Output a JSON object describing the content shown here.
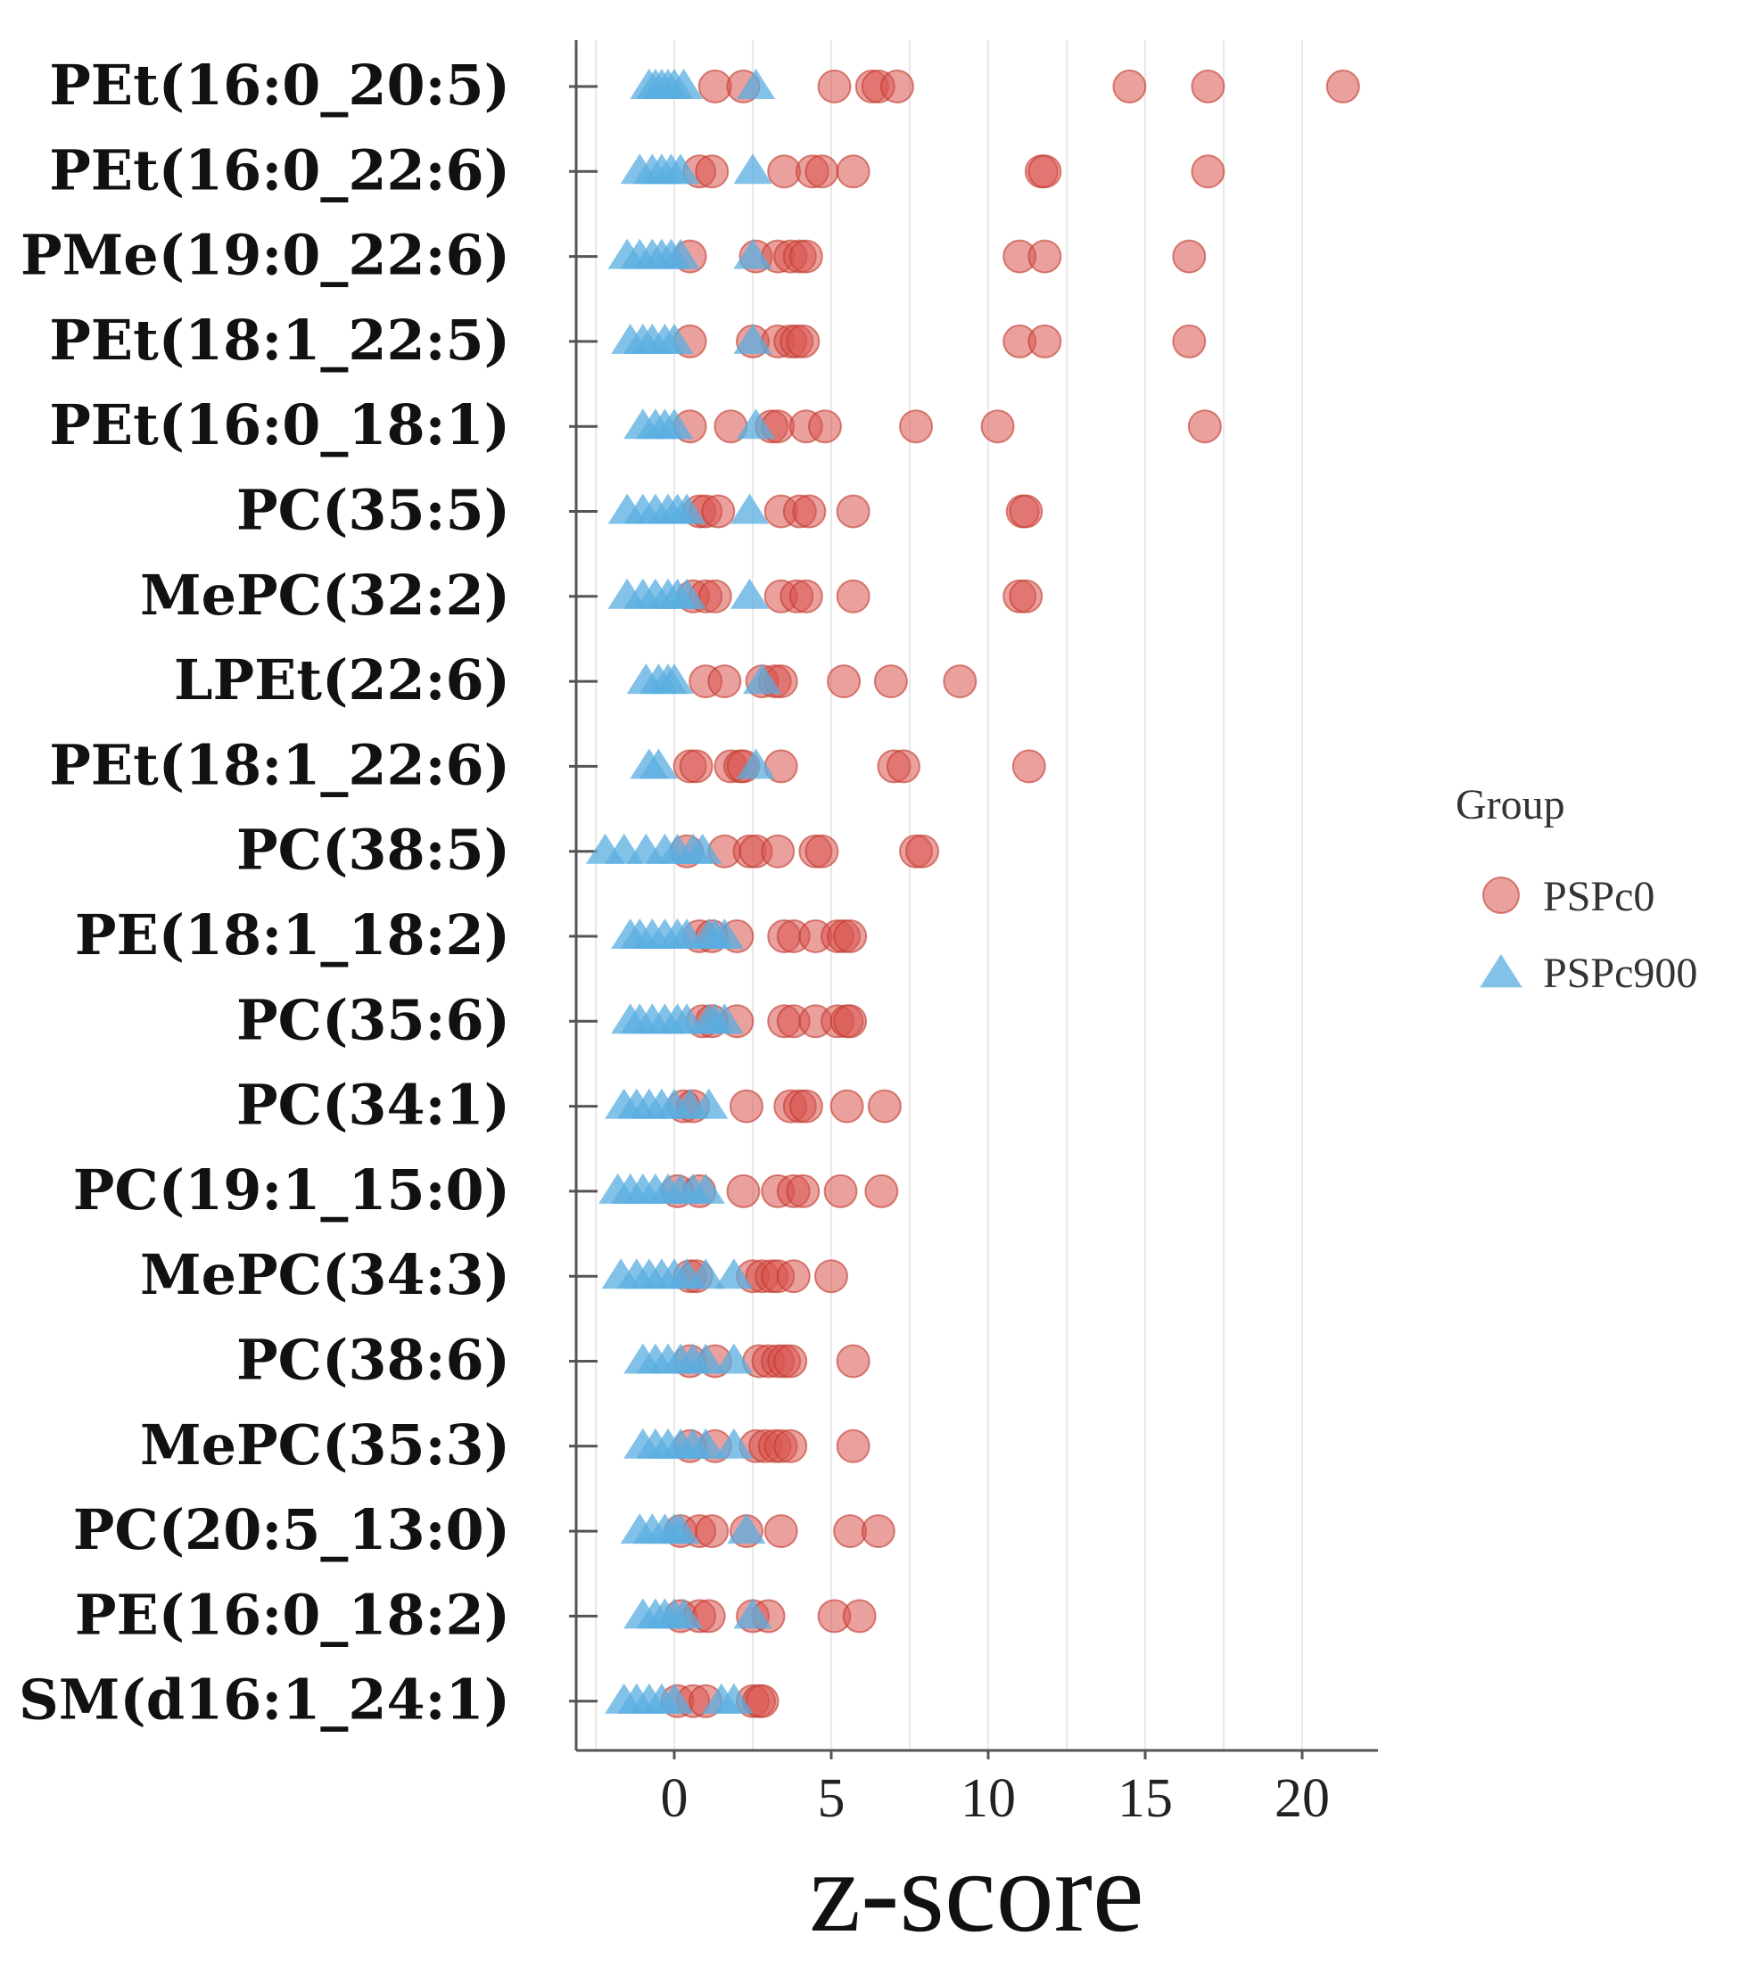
{
  "chart_data": {
    "type": "scatter",
    "xlabel": "z-score",
    "ylabel": "",
    "xlim": [
      -3.2,
      22.5
    ],
    "xticks": [
      0,
      5,
      10,
      15,
      20
    ],
    "xtick_labels": [
      "0",
      "5",
      "10",
      "15",
      "20"
    ],
    "grid": "vertical",
    "legend": {
      "title": "Group",
      "position": "right"
    },
    "categories": [
      "PEt(16:0_20:5)",
      "PEt(16:0_22:6)",
      "PMe(19:0_22:6)",
      "PEt(18:1_22:5)",
      "PEt(16:0_18:1)",
      "PC(35:5)",
      "MePC(32:2)",
      "LPEt(22:6)",
      "PEt(18:1_22:6)",
      "PC(38:5)",
      "PE(18:1_18:2)",
      "PC(35:6)",
      "PC(34:1)",
      "PC(19:1_15:0)",
      "MePC(34:3)",
      "PC(38:6)",
      "MePC(35:3)",
      "PC(20:5_13:0)",
      "PE(16:0_18:2)",
      "SM(d16:1_24:1)"
    ],
    "series": [
      {
        "name": "PSPc0",
        "marker": "circle",
        "color": "#d9534f",
        "values": [
          [
            1.3,
            2.2,
            5.1,
            6.3,
            6.5,
            7.1,
            14.5,
            17.0,
            21.3
          ],
          [
            0.8,
            1.2,
            3.5,
            4.4,
            4.7,
            5.7,
            11.7,
            11.8,
            17.0
          ],
          [
            0.5,
            2.6,
            3.3,
            3.7,
            4.0,
            4.2,
            11.0,
            11.8,
            16.4
          ],
          [
            0.5,
            2.5,
            3.3,
            3.7,
            3.9,
            4.1,
            11.0,
            11.8,
            16.4
          ],
          [
            0.5,
            1.8,
            3.1,
            3.3,
            4.2,
            4.8,
            7.7,
            10.3,
            16.9
          ],
          [
            0.8,
            1.0,
            1.4,
            3.4,
            4.0,
            4.3,
            5.7,
            11.1,
            11.2
          ],
          [
            0.6,
            1.0,
            1.3,
            3.4,
            3.9,
            4.2,
            5.7,
            11.0,
            11.2
          ],
          [
            1.0,
            1.6,
            2.8,
            3.2,
            3.4,
            5.4,
            6.9,
            9.1
          ],
          [
            0.5,
            0.7,
            1.8,
            2.1,
            2.2,
            3.4,
            7.0,
            7.3,
            11.3
          ],
          [
            0.4,
            1.6,
            2.4,
            2.6,
            3.3,
            4.5,
            4.7,
            7.7,
            7.9
          ],
          [
            0.8,
            1.2,
            2.0,
            3.5,
            3.8,
            4.5,
            5.2,
            5.4,
            5.6
          ],
          [
            0.9,
            1.2,
            2.0,
            3.5,
            3.8,
            4.5,
            5.2,
            5.5,
            5.6
          ],
          [
            0.3,
            0.6,
            2.3,
            3.7,
            4.0,
            4.2,
            5.5,
            6.7
          ],
          [
            0.1,
            0.8,
            2.2,
            3.3,
            3.8,
            4.1,
            5.3,
            6.6
          ],
          [
            0.5,
            0.7,
            2.5,
            2.8,
            3.1,
            3.3,
            3.8,
            5.0
          ],
          [
            0.5,
            1.3,
            2.7,
            3.0,
            3.3,
            3.5,
            3.7,
            5.7
          ],
          [
            0.5,
            1.3,
            2.6,
            2.9,
            3.2,
            3.4,
            3.7,
            5.7
          ],
          [
            0.2,
            0.8,
            1.2,
            2.3,
            3.4,
            5.6,
            6.5
          ],
          [
            0.2,
            0.8,
            1.1,
            2.5,
            3.0,
            5.1,
            5.9
          ],
          [
            0.1,
            0.6,
            1.0,
            2.5,
            2.7,
            2.8
          ]
        ]
      },
      {
        "name": "PSPc900",
        "marker": "triangle",
        "color": "#5aaee0",
        "values": [
          [
            -0.8,
            -0.6,
            -0.4,
            -0.2,
            0.0,
            0.3,
            2.6
          ],
          [
            -1.1,
            -0.7,
            -0.4,
            -0.1,
            0.2,
            2.5
          ],
          [
            -1.5,
            -1.1,
            -0.7,
            -0.4,
            -0.1,
            0.2,
            2.5
          ],
          [
            -1.4,
            -1.0,
            -0.7,
            -0.3,
            0.0,
            2.5
          ],
          [
            -1.0,
            -0.6,
            -0.3,
            0.0,
            2.6
          ],
          [
            -1.5,
            -1.0,
            -0.6,
            -0.2,
            0.1,
            0.4,
            2.4
          ],
          [
            -1.5,
            -1.0,
            -0.6,
            -0.2,
            0.1,
            0.4,
            2.4
          ],
          [
            -0.9,
            -0.5,
            -0.2,
            0.0,
            2.8
          ],
          [
            -0.8,
            -0.5,
            2.6
          ],
          [
            -2.2,
            -1.6,
            -0.9,
            -0.3,
            0.1,
            0.6,
            0.9
          ],
          [
            -1.4,
            -1.1,
            -0.7,
            -0.3,
            0.1,
            0.4,
            1.1,
            1.3,
            1.6
          ],
          [
            -1.4,
            -1.1,
            -0.7,
            -0.3,
            0.1,
            0.4,
            1.1,
            1.3,
            1.6
          ],
          [
            -1.6,
            -1.2,
            -0.8,
            -0.4,
            0.0,
            0.5,
            1.1
          ],
          [
            -1.8,
            -1.4,
            -1.0,
            -0.6,
            -0.2,
            0.2,
            0.6,
            1.0
          ],
          [
            -1.7,
            -1.2,
            -0.8,
            -0.4,
            0.0,
            0.4,
            1.0,
            1.9
          ],
          [
            -1.0,
            -0.6,
            -0.2,
            0.2,
            0.6,
            1.0,
            1.9
          ],
          [
            -1.0,
            -0.6,
            -0.2,
            0.2,
            0.6,
            1.0,
            1.9
          ],
          [
            -1.1,
            -0.7,
            -0.3,
            0.0,
            0.2,
            2.3
          ],
          [
            -1.0,
            -0.6,
            -0.3,
            0.0,
            0.3,
            2.5
          ],
          [
            -1.6,
            -1.2,
            -0.8,
            -0.4,
            0.0,
            1.5,
            1.9
          ]
        ]
      }
    ]
  }
}
